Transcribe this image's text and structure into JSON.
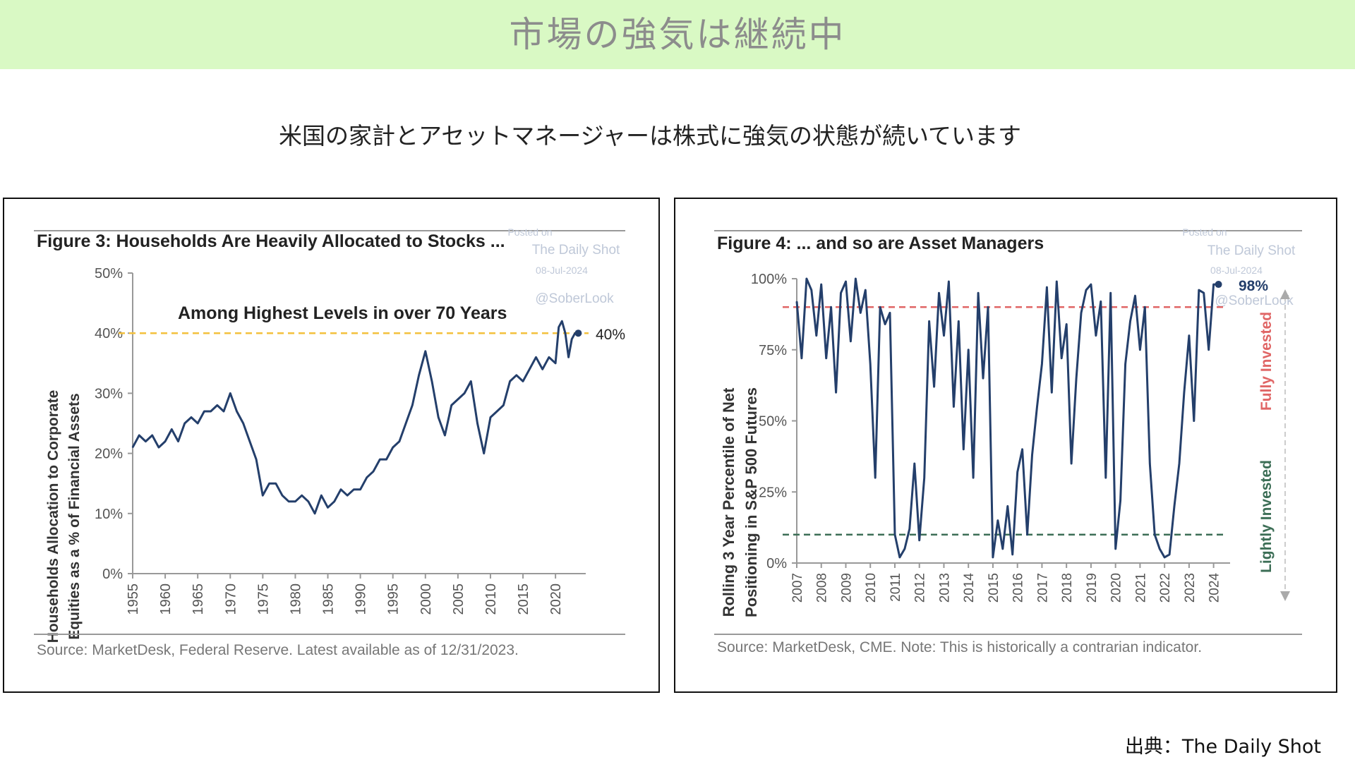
{
  "banner": {
    "title": "市場の強気は継続中"
  },
  "subtitle": "米国の家計とアセットマネージャーは株式に強気の状態が続いています",
  "credit": "出典：The Daily Shot",
  "colors": {
    "banner_bg": "#d9f9c4",
    "series": "#243f6b",
    "yellow": "#f3c13d",
    "red": "#e06666",
    "green": "#3c6e56"
  },
  "chart_data": [
    {
      "type": "line",
      "title": "Figure 3: Households Are Heavily Allocated to Stocks ...",
      "watermark": [
        "Posted on",
        "The Daily Shot",
        "08-Jul-2024",
        "@SoberLook"
      ],
      "ylabel": [
        "Households Allocation to Corporate",
        "Equities as a % of Financial Assets"
      ],
      "xlabel": "",
      "ylim": [
        0,
        50
      ],
      "xlim": [
        1955,
        2024
      ],
      "yticks": [
        "0%",
        "10%",
        "20%",
        "30%",
        "40%",
        "50%"
      ],
      "xticks": [
        "1955",
        "1960",
        "1965",
        "1970",
        "1975",
        "1980",
        "1985",
        "1990",
        "1995",
        "2000",
        "2005",
        "2010",
        "2015",
        "2020"
      ],
      "annotation": "Among Highest Levels in over 70 Years",
      "reference_line": {
        "value": 40,
        "label": "40%",
        "color": "#f3c13d"
      },
      "source": "Source: MarketDesk, Federal Reserve. Latest available as of 12/31/2023.",
      "series": [
        {
          "x": [
            1955,
            1956,
            1957,
            1958,
            1959,
            1960,
            1961,
            1962,
            1963,
            1964,
            1965,
            1966,
            1967,
            1968,
            1969,
            1970,
            1971,
            1972,
            1973,
            1974,
            1975,
            1976,
            1977,
            1978,
            1979,
            1980,
            1981,
            1982,
            1983,
            1984,
            1985,
            1986,
            1987,
            1988,
            1989,
            1990,
            1991,
            1992,
            1993,
            1994,
            1995,
            1996,
            1997,
            1998,
            1999,
            2000,
            2001,
            2002,
            2003,
            2004,
            2005,
            2006,
            2007,
            2008,
            2009,
            2010,
            2011,
            2012,
            2013,
            2014,
            2015,
            2016,
            2017,
            2018,
            2019,
            2020,
            2020.5,
            2021,
            2021.5,
            2022,
            2022.5,
            2023,
            2023.5
          ],
          "y": [
            21,
            23,
            22,
            23,
            21,
            22,
            24,
            22,
            25,
            26,
            25,
            27,
            27,
            28,
            27,
            30,
            27,
            25,
            22,
            19,
            13,
            15,
            15,
            13,
            12,
            12,
            13,
            12,
            10,
            13,
            11,
            12,
            14,
            13,
            14,
            14,
            16,
            17,
            19,
            19,
            21,
            22,
            25,
            28,
            33,
            37,
            32,
            26,
            23,
            28,
            29,
            30,
            32,
            25,
            20,
            26,
            27,
            28,
            32,
            33,
            32,
            34,
            36,
            34,
            36,
            35,
            41,
            42,
            40,
            36,
            39,
            40,
            40
          ]
        }
      ]
    },
    {
      "type": "line",
      "title": "Figure 4: ... and so are Asset Managers",
      "watermark": [
        "Posted on",
        "The Daily Shot",
        "08-Jul-2024",
        "@SoberLook"
      ],
      "ylabel": [
        "Rolling 3 Year Percentile of Net",
        "Positioning in S&P 500 Futures"
      ],
      "xlabel": "",
      "ylim": [
        0,
        100
      ],
      "xlim": [
        2007,
        2024.5
      ],
      "yticks": [
        "0%",
        "25%",
        "50%",
        "75%",
        "100%"
      ],
      "xticks": [
        "2007",
        "2008",
        "2009",
        "2010",
        "2011",
        "2012",
        "2013",
        "2014",
        "2015",
        "2016",
        "2017",
        "2018",
        "2019",
        "2020",
        "2021",
        "2022",
        "2023",
        "2024"
      ],
      "reference_lines": [
        {
          "value": 90,
          "color": "#e06666"
        },
        {
          "value": 10,
          "color": "#3c6e56"
        }
      ],
      "end_label": "98%",
      "side_labels": {
        "top": "Fully Invested",
        "bottom": "Lightly Invested"
      },
      "source": "Source: MarketDesk, CME. Note: This is historically a contrarian indicator.",
      "series": [
        {
          "x": [
            2007,
            2007.2,
            2007.4,
            2007.6,
            2007.8,
            2008,
            2008.2,
            2008.4,
            2008.6,
            2008.8,
            2009,
            2009.2,
            2009.4,
            2009.6,
            2009.8,
            2010,
            2010.2,
            2010.4,
            2010.6,
            2010.8,
            2011,
            2011.2,
            2011.4,
            2011.6,
            2011.8,
            2012,
            2012.2,
            2012.4,
            2012.6,
            2012.8,
            2013,
            2013.2,
            2013.4,
            2013.6,
            2013.8,
            2014,
            2014.2,
            2014.4,
            2014.6,
            2014.8,
            2015,
            2015.2,
            2015.4,
            2015.6,
            2015.8,
            2016,
            2016.2,
            2016.4,
            2016.6,
            2016.8,
            2017,
            2017.2,
            2017.4,
            2017.6,
            2017.8,
            2018,
            2018.2,
            2018.4,
            2018.6,
            2018.8,
            2019,
            2019.2,
            2019.4,
            2019.6,
            2019.8,
            2020,
            2020.2,
            2020.4,
            2020.6,
            2020.8,
            2021,
            2021.2,
            2021.4,
            2021.6,
            2021.8,
            2022,
            2022.2,
            2022.4,
            2022.6,
            2022.8,
            2023,
            2023.2,
            2023.4,
            2023.6,
            2023.8,
            2024,
            2024.2
          ],
          "y": [
            92,
            72,
            100,
            96,
            80,
            98,
            72,
            90,
            60,
            95,
            99,
            78,
            100,
            88,
            96,
            70,
            30,
            90,
            84,
            88,
            10,
            2,
            5,
            12,
            35,
            8,
            30,
            85,
            62,
            95,
            80,
            99,
            55,
            85,
            40,
            75,
            30,
            95,
            65,
            90,
            2,
            15,
            5,
            20,
            3,
            32,
            40,
            10,
            38,
            55,
            70,
            97,
            60,
            99,
            72,
            84,
            35,
            65,
            88,
            96,
            98,
            80,
            92,
            30,
            95,
            5,
            22,
            70,
            85,
            94,
            75,
            90,
            35,
            10,
            5,
            2,
            3,
            20,
            35,
            60,
            80,
            50,
            96,
            95,
            75,
            98,
            98
          ]
        }
      ]
    }
  ]
}
